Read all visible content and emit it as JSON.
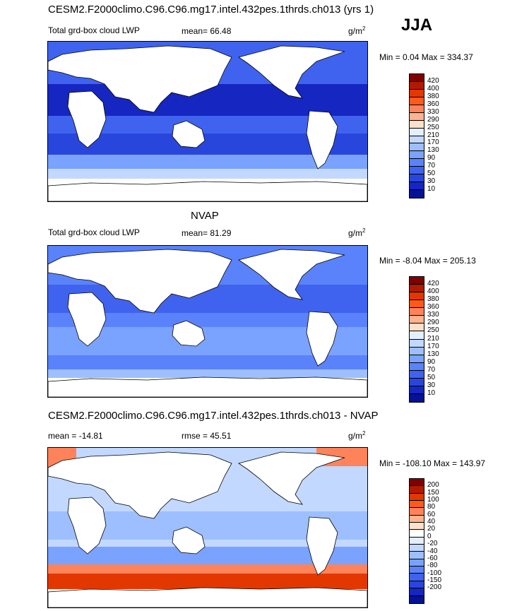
{
  "season": "JJA",
  "panels": [
    {
      "title": "CESM2.F2000climo.C96.C96.mg17.intel.432pes.1thrds.ch013 (yrs 1)",
      "left_label": "Total grd-box cloud LWP",
      "stat_label": "mean=  66.48",
      "units": "g/m",
      "units_exp": "2",
      "minmax": "Min =   0.04 Max = 334.37",
      "colorbar": {
        "colors": [
          "#7f0000",
          "#b21a00",
          "#e33700",
          "#ff5a1a",
          "#ff835a",
          "#ffb28f",
          "#fde0c8",
          "#e2efff",
          "#c2d8ff",
          "#9dbfff",
          "#7aa2ff",
          "#5a82fb",
          "#3f63ef",
          "#2946dc",
          "#1626c0",
          "#051196"
        ],
        "labels": [
          "420",
          "400",
          "380",
          "360",
          "330",
          "290",
          "250",
          "210",
          "170",
          "130",
          "90",
          "70",
          "50",
          "30",
          "10"
        ]
      }
    },
    {
      "title": "NVAP",
      "left_label": "Total grd-box cloud LWP",
      "stat_label": "mean=  81.29",
      "units": "g/m",
      "units_exp": "2",
      "minmax": "Min =  -8.04 Max = 205.13",
      "colorbar": {
        "colors": [
          "#7f0000",
          "#b21a00",
          "#e33700",
          "#ff5a1a",
          "#ff835a",
          "#ffb28f",
          "#fde0c8",
          "#e2efff",
          "#c2d8ff",
          "#9dbfff",
          "#7aa2ff",
          "#5a82fb",
          "#3f63ef",
          "#2946dc",
          "#1626c0",
          "#051196"
        ],
        "labels": [
          "420",
          "400",
          "380",
          "360",
          "330",
          "290",
          "250",
          "210",
          "170",
          "130",
          "90",
          "70",
          "50",
          "30",
          "10"
        ]
      }
    },
    {
      "title": "CESM2.F2000climo.C96.C96.mg17.intel.432pes.1thrds.ch013 - NVAP",
      "left_label": "mean = -14.81",
      "stat_label": "rmse =  45.51",
      "units": "g/m",
      "units_exp": "2",
      "minmax": "Min = -108.10 Max = 143.97",
      "colorbar": {
        "colors": [
          "#7f0000",
          "#b21a00",
          "#e33700",
          "#ff5a1a",
          "#ff835a",
          "#ffb28f",
          "#fde0c8",
          "#ffffff",
          "#e2efff",
          "#c2d8ff",
          "#9dbfff",
          "#7aa2ff",
          "#5a82fb",
          "#3f63ef",
          "#2946dc",
          "#1626c0",
          "#051196"
        ],
        "labels": [
          "200",
          "150",
          "100",
          "80",
          "60",
          "40",
          "20",
          "0",
          "-20",
          "-40",
          "-60",
          "-80",
          "-100",
          "-150",
          "-200"
        ]
      }
    }
  ],
  "fill": {
    "p0": {
      "ocean_base": "#3f63ef",
      "band_low": "#1626c0",
      "band_mid": "#2946dc",
      "south_pale": "#c2d8ff",
      "south_light": "#7aa2ff",
      "antarctic": "#ffffff"
    },
    "p1": {
      "ocean_base": "#5a82fb",
      "band_low": "#3f63ef",
      "band_mid": "#7aa2ff",
      "south_pale": "#9dbfff",
      "south_light": "#5a82fb",
      "antarctic": "#ffffff"
    },
    "p2": {
      "ocean_base": "#c2d8ff",
      "band_low": "#9dbfff",
      "band_mid": "#7aa2ff",
      "south_pale": "#ff835a",
      "south_light": "#e33700",
      "antarctic": "#ffffff"
    }
  }
}
